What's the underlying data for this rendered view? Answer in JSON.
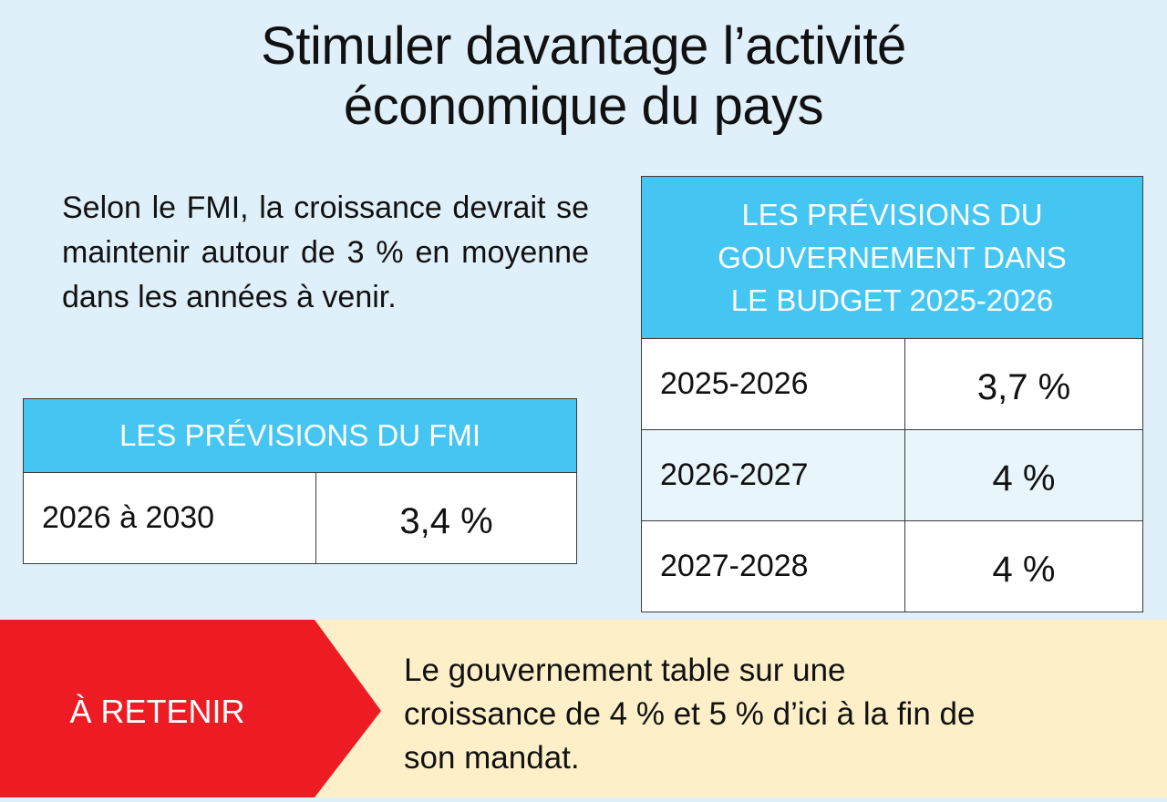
{
  "title": {
    "line1": "Stimuler davantage l’activité",
    "line2": "économique du pays"
  },
  "intro": "Selon le FMI, la croissance devrait se maintenir autour de 3 % en moyenne dans les années à venir.",
  "fmi_table": {
    "header": "LES PRÉVISIONS DU FMI",
    "rows": [
      {
        "period": "2026 à 2030",
        "value": "3,4 %"
      }
    ]
  },
  "gov_table": {
    "header_lines": [
      "LES PRÉVISIONS DU",
      "GOUVERNEMENT DANS",
      "LE BUDGET 2025-2026"
    ],
    "rows": [
      {
        "period": "2025-2026",
        "value": "3,7 %"
      },
      {
        "period": "2026-2027",
        "value": "4 %"
      },
      {
        "period": "2027-2028",
        "value": "4 %"
      }
    ]
  },
  "retenir": {
    "label": "À RETENIR",
    "lines": [
      "Le gouvernement table sur une",
      "croissance de 4 % et 5 % d’ici à la fin de",
      "son mandat."
    ]
  },
  "colors": {
    "background": "#dff0fa",
    "table_header": "#45c6f2",
    "accent_red": "#ed1c24",
    "callout_bg": "#fdf0c8"
  }
}
